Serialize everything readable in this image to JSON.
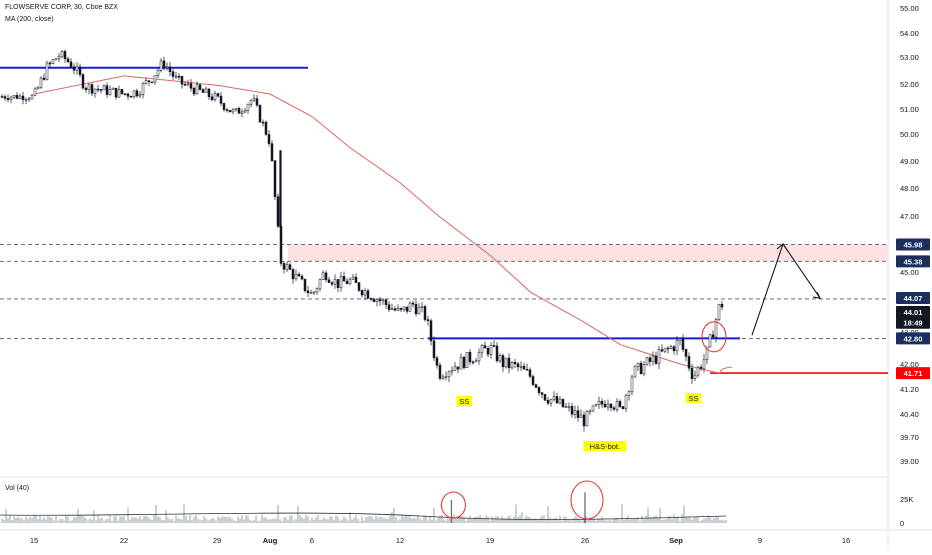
{
  "header": {
    "symbol_line": "FLOWSERVE CORP, 30, Cboe BZX",
    "ma_line": "MA (200, close)",
    "volume_line": "Vol (40)"
  },
  "colors": {
    "candle": "#131722",
    "ma": "#e06666",
    "blue_line": "#1a1adb",
    "red_line": "#ff0000",
    "zone": "#fbe2e2",
    "annotation": "#ffff00",
    "circle": "#e53935"
  },
  "chart_data": {
    "type": "line",
    "series": [
      {
        "name": "FLOWSERVE CORP, 30, Cboe BZX",
        "values": [
          [
            "Jul 15",
            51.5
          ],
          [
            "Jul 16",
            52.6
          ],
          [
            "Jul 17",
            53.1
          ],
          [
            "Jul 18",
            52.7
          ],
          [
            "Jul 19",
            51.9
          ],
          [
            "Jul 22",
            51.6
          ],
          [
            "Jul 23",
            51.7
          ],
          [
            "Jul 24",
            52.2
          ],
          [
            "Jul 25",
            52.8
          ],
          [
            "Jul 26",
            52.1
          ],
          [
            "Jul 29",
            51.4
          ],
          [
            "Jul 30",
            50.8
          ],
          [
            "Jul 31",
            51.4
          ],
          [
            "Aug 1",
            49.7
          ],
          [
            "Aug 2",
            45.4
          ],
          [
            "Aug 5",
            44.2
          ],
          [
            "Aug 6",
            45.0
          ],
          [
            "Aug 7",
            44.6
          ],
          [
            "Aug 8",
            44.7
          ],
          [
            "Aug 9",
            44.4
          ],
          [
            "Aug 12",
            43.6
          ],
          [
            "Aug 13",
            43.9
          ],
          [
            "Aug 14",
            43.5
          ],
          [
            "Aug 15",
            41.7
          ],
          [
            "Aug 16",
            41.9
          ],
          [
            "Aug 19",
            42.5
          ],
          [
            "Aug 20",
            42.0
          ],
          [
            "Aug 21",
            41.9
          ],
          [
            "Aug 22",
            41.6
          ],
          [
            "Aug 23",
            41.0
          ],
          [
            "Aug 26",
            40.2
          ],
          [
            "Aug 27",
            40.6
          ],
          [
            "Aug 28",
            40.9
          ],
          [
            "Aug 29",
            40.5
          ],
          [
            "Aug 30",
            41.7
          ],
          [
            "Sep 3",
            42.7
          ],
          [
            "Sep 4",
            41.6
          ],
          [
            "Sep 5",
            42.3
          ],
          [
            "Sep 6",
            43.9
          ]
        ]
      },
      {
        "name": "MA (200, close)",
        "values": [
          [
            "Jul 15",
            51.6
          ],
          [
            "Jul 22",
            52.3
          ],
          [
            "Jul 29",
            51.95
          ],
          [
            "Aug 1",
            51.6
          ],
          [
            "Aug 5",
            50.7
          ],
          [
            "Aug 8",
            49.5
          ],
          [
            "Aug 12",
            48.2
          ],
          [
            "Aug 15",
            47.0
          ],
          [
            "Aug 19",
            45.6
          ],
          [
            "Aug 22",
            44.3
          ],
          [
            "Aug 26",
            43.3
          ],
          [
            "Aug 29",
            42.6
          ],
          [
            "Sep 3",
            42.0
          ],
          [
            "Sep 6",
            41.7
          ]
        ]
      }
    ],
    "volume": {
      "name": "Vol (40)",
      "spikes": [
        {
          "date": "Aug 16",
          "value": 24000
        },
        {
          "date": "Aug 26",
          "value": 32000
        }
      ]
    },
    "x_axis": {
      "tick_labels": [
        "15",
        "22",
        "29",
        "Aug",
        "6",
        "12",
        "19",
        "26",
        "Sep",
        "9",
        "16"
      ]
    },
    "y_axis": {
      "tick_labels": [
        "55.00",
        "54.00",
        "53.00",
        "52.00",
        "51.00",
        "50.00",
        "49.00",
        "48.00",
        "47.00",
        "46.00",
        "45.00",
        "44.00",
        "43.00",
        "42.00",
        "41.20",
        "40.40",
        "39.70",
        "39.00"
      ],
      "ylim": [
        38.7,
        55.2
      ]
    },
    "volume_axis": {
      "tick_labels": [
        "25K",
        "0"
      ]
    },
    "price_labels": [
      {
        "text": "45.98",
        "color": "#1a2f5e"
      },
      {
        "text": "45.38",
        "color": "#1a2f5e"
      },
      {
        "text": "44.07",
        "color": "#1a2f5e"
      },
      {
        "text": "44.01",
        "color": "#131722"
      },
      {
        "text": "18:49",
        "color": "#131722"
      },
      {
        "text": "42.80",
        "color": "#1a2f5e"
      },
      {
        "text": "41.71",
        "color": "#ff0000"
      }
    ],
    "levels": {
      "dashed": [
        45.98,
        45.38,
        44.07,
        42.8
      ],
      "resistance_zone": [
        45.38,
        45.98
      ],
      "blue_top": 52.6,
      "blue_neckline": 42.8,
      "red_ma_level": 41.71
    },
    "annotations": [
      {
        "text": "SS",
        "date": "Aug 17"
      },
      {
        "text": "H&S-bot.",
        "date": "Aug 27"
      },
      {
        "text": "SS",
        "date": "Sep 4"
      }
    ]
  }
}
